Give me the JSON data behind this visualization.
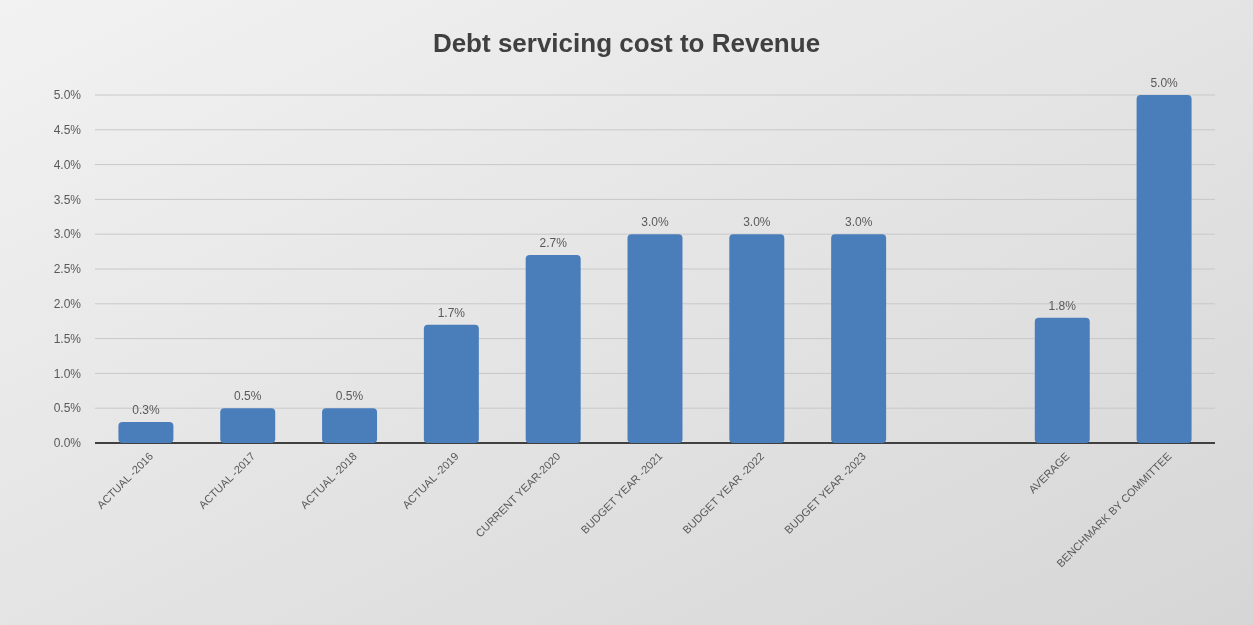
{
  "chart_data": {
    "type": "bar",
    "title": "Debt servicing cost to Revenue",
    "categories": [
      "ACTUAL -2016",
      "ACTUAL -2017",
      "ACTUAL -2018",
      "ACTUAL -2019",
      "CURRENT YEAR-2020",
      "BUDGET YEAR -2021",
      "BUDGET YEAR -2022",
      "BUDGET YEAR -2023",
      null,
      "AVERAGE",
      "BENCHMARK BY COMMITTEE"
    ],
    "values": [
      0.3,
      0.5,
      0.5,
      1.7,
      2.7,
      3.0,
      3.0,
      3.0,
      null,
      1.8,
      5.0
    ],
    "value_labels": [
      "0.3%",
      "0.5%",
      "0.5%",
      "1.7%",
      "2.7%",
      "3.0%",
      "3.0%",
      "3.0%",
      null,
      "1.8%",
      "5.0%"
    ],
    "color": "#4a7ebb",
    "ylim": [
      0,
      5
    ],
    "yticks": [
      {
        "value": 0,
        "label": "0.0%"
      },
      {
        "value": 0.5,
        "label": "0.5%"
      },
      {
        "value": 1,
        "label": "1.0%"
      },
      {
        "value": 1.5,
        "label": "1.5%"
      },
      {
        "value": 2,
        "label": "2.0%"
      },
      {
        "value": 2.5,
        "label": "2.5%"
      },
      {
        "value": 3,
        "label": "3.0%"
      },
      {
        "value": 3.5,
        "label": "3.5%"
      },
      {
        "value": 4,
        "label": "4.0%"
      },
      {
        "value": 4.5,
        "label": "4.5%"
      },
      {
        "value": 5,
        "label": "5.0%"
      }
    ],
    "grid": "y"
  }
}
